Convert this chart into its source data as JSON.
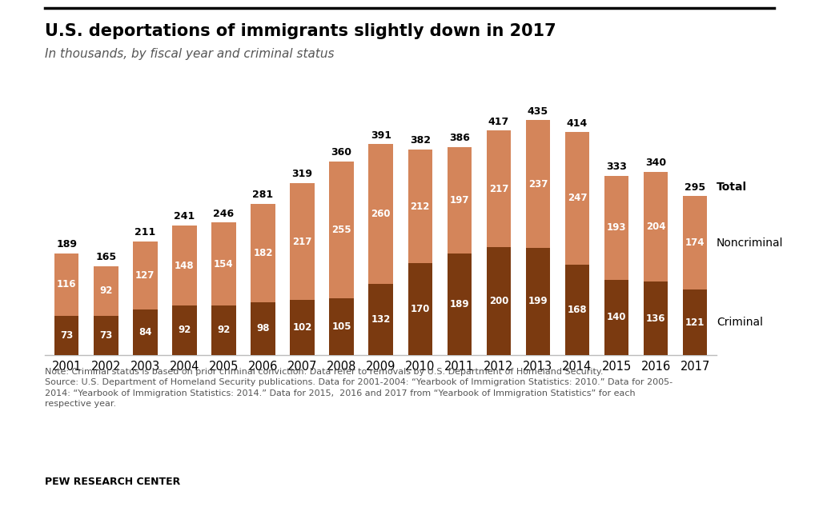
{
  "title": "U.S. deportations of immigrants slightly down in 2017",
  "subtitle": "In thousands, by fiscal year and criminal status",
  "years": [
    2001,
    2002,
    2003,
    2004,
    2005,
    2006,
    2007,
    2008,
    2009,
    2010,
    2011,
    2012,
    2013,
    2014,
    2015,
    2016,
    2017
  ],
  "criminal": [
    73,
    73,
    84,
    92,
    92,
    98,
    102,
    105,
    132,
    170,
    189,
    200,
    199,
    168,
    140,
    136,
    121
  ],
  "noncriminal": [
    116,
    92,
    127,
    148,
    154,
    182,
    217,
    255,
    260,
    212,
    197,
    217,
    237,
    247,
    193,
    204,
    174
  ],
  "total": [
    189,
    165,
    211,
    241,
    246,
    281,
    319,
    360,
    391,
    382,
    386,
    417,
    435,
    414,
    333,
    340,
    295
  ],
  "criminal_color": "#7B3A10",
  "noncriminal_color": "#D4855A",
  "bar_width": 0.62,
  "ylim": [
    0,
    490
  ],
  "note_text": "Note: Criminal status is based on prior criminal conviction. Data refer to removals by U.S. Department of Homeland Security.\nSource: U.S. Department of Homeland Security publications. Data for 2001-2004: “Yearbook of Immigration Statistics: 2010.” Data for 2005-\n2014: “Yearbook of Immigration Statistics: 2014.” Data for 2015,  2016 and 2017 from “Yearbook of Immigration Statistics” for each\nrespective year.",
  "source_label": "PEW RESEARCH CENTER",
  "legend_criminal": "Criminal",
  "legend_noncriminal": "Noncriminal",
  "legend_total": "Total",
  "bg_color": "#FFFFFF"
}
